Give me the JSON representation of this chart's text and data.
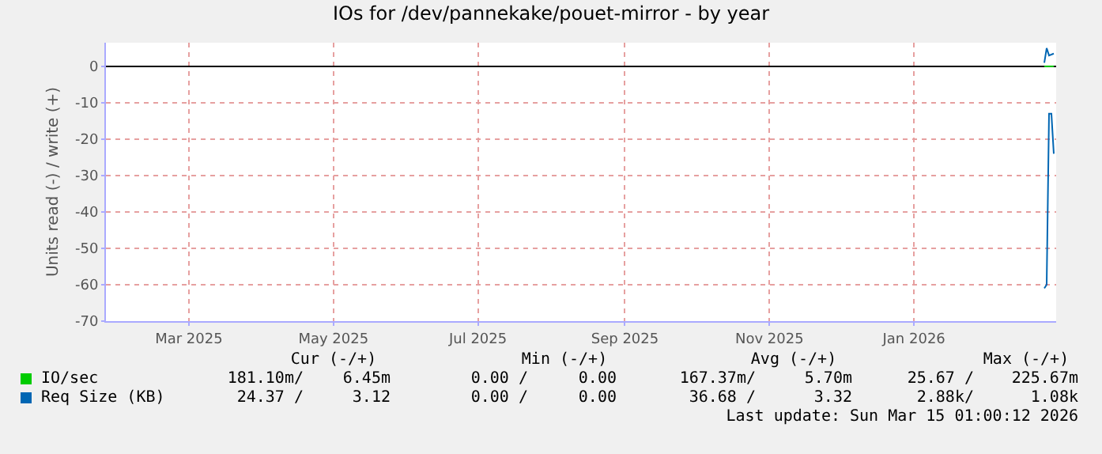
{
  "chart_data": {
    "type": "line",
    "title": "IOs for /dev/pannekake/pouet-mirror - by year",
    "ylabel": "Units read (-) / write (+)",
    "xlim": [
      "2025-01-25",
      "2026-03-02"
    ],
    "xticks": [
      {
        "value": "2025-03-01",
        "label": "Mar 2025"
      },
      {
        "value": "2025-05-01",
        "label": "May 2025"
      },
      {
        "value": "2025-07-01",
        "label": "Jul 2025"
      },
      {
        "value": "2025-09-01",
        "label": "Sep 2025"
      },
      {
        "value": "2025-11-01",
        "label": "Nov 2025"
      },
      {
        "value": "2026-01-01",
        "label": "Jan 2026"
      }
    ],
    "ylim": [
      -70,
      6.5
    ],
    "yticks": [
      0,
      -10,
      -20,
      -30,
      -40,
      -50,
      -60,
      -70
    ],
    "grid": true,
    "legend": "bottom left",
    "ref_lines": [
      {
        "axis": "y",
        "value": 0,
        "color": "#000000"
      }
    ],
    "series": [
      {
        "name": "IO/sec",
        "color": "#00cc00",
        "x": [
          "2026-02-25",
          "2026-02-27",
          "2026-03-01"
        ],
        "values": [
          0,
          0,
          0
        ]
      },
      {
        "name": "Req Size (KB)",
        "color": "#0066b3",
        "x": [
          "2026-02-25",
          "2026-02-26",
          "2026-02-27",
          "2026-02-28",
          "2026-03-01"
        ],
        "values": [
          -61,
          -60,
          -13,
          -13,
          -24
        ]
      },
      {
        "color": "#0066b3",
        "x": [
          "2026-02-25",
          "2026-02-26",
          "2026-02-27",
          "2026-03-01"
        ],
        "values": [
          1,
          5,
          3,
          3.5
        ]
      }
    ],
    "annotations": [
      "Cur (-/+)",
      "Min (-/+)",
      "Avg (-/+)",
      "Max (-/+)",
      "181.10m/",
      "6.45m",
      "0.00 /",
      "0.00",
      "167.37m/",
      "5.70m",
      "25.67 /",
      "225.67m",
      "24.37 /",
      "3.12",
      "0.00 /",
      "0.00",
      "36.68 /",
      "3.32",
      "2.88k/",
      "1.08k",
      "Last update: Sun Mar 15 01:00:12 2026"
    ]
  }
}
